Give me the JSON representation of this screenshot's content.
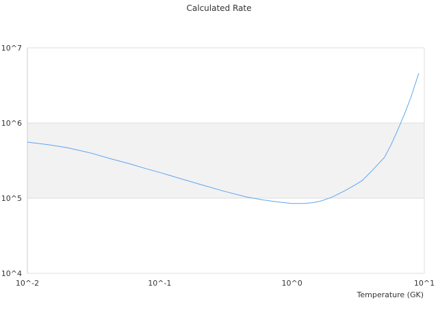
{
  "chart_data": {
    "type": "line",
    "title": "Calculated Rate",
    "xlabel": "Temperature (GK)",
    "ylabel": "",
    "x_scale": "log",
    "y_scale": "log",
    "xlim": [
      0.01,
      10
    ],
    "ylim": [
      10000,
      10000000
    ],
    "x_ticks": [
      {
        "value": 0.01,
        "label": "10^-2"
      },
      {
        "value": 0.1,
        "label": "10^-1"
      },
      {
        "value": 1,
        "label": "10^0"
      },
      {
        "value": 10,
        "label": "10^1"
      }
    ],
    "y_ticks": [
      {
        "value": 10000,
        "label": "10^4"
      },
      {
        "value": 100000,
        "label": "10^5"
      },
      {
        "value": 1000000,
        "label": "10^6"
      },
      {
        "value": 10000000,
        "label": "10^7"
      }
    ],
    "grid": true,
    "shaded_band": [
      100000,
      1000000
    ],
    "band_color": "#f2f2f2",
    "line_color": "#5aa5f0",
    "series": [
      {
        "x": [
          0.01,
          0.0125,
          0.015,
          0.02,
          0.03,
          0.042,
          0.06,
          0.08,
          0.1,
          0.15,
          0.22,
          0.3,
          0.45,
          0.6,
          0.8,
          1.0,
          1.25,
          1.45,
          1.67,
          2.0,
          2.5,
          3.0,
          3.4,
          4.1,
          5.0,
          5.6,
          6.2,
          7.0,
          7.9,
          9.08
        ],
        "y": [
          556000,
          530000,
          510000,
          470000,
          400000,
          337000,
          285000,
          245000,
          220000,
          178000,
          146000,
          125000,
          104000,
          95000,
          88500,
          85000,
          85000,
          87500,
          92000,
          103000,
          125000,
          150000,
          172000,
          240000,
          350000,
          510000,
          760000,
          1250000,
          2170000,
          4600000
        ]
      }
    ]
  }
}
